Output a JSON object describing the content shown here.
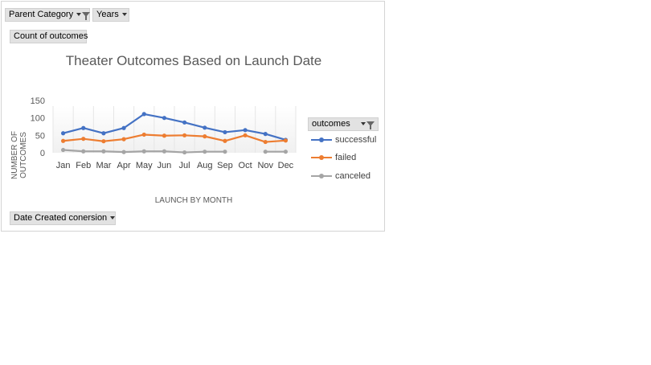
{
  "pivot_fields": {
    "parent_category": "Parent Category",
    "years": "Years",
    "values_field": "Count of outcomes",
    "axis_field": "Date Created conersion",
    "legend_field": "outcomes"
  },
  "chart_data": {
    "type": "line",
    "title": "Theater Outcomes Based on Launch Date",
    "xlabel": "LAUNCH BY MONTH",
    "ylabel": "NUMBER OF OUTCOMES",
    "ylim": [
      0,
      150
    ],
    "yticks": [
      "150",
      "100",
      "50",
      "0"
    ],
    "categories": [
      "Jan",
      "Feb",
      "Mar",
      "Apr",
      "May",
      "Jun",
      "Jul",
      "Aug",
      "Sep",
      "Oct",
      "Nov",
      "Dec"
    ],
    "series": [
      {
        "name": "successful",
        "color": "#4472c4",
        "values": [
          56,
          71,
          56,
          71,
          111,
          100,
          87,
          72,
          59,
          65,
          54,
          37
        ]
      },
      {
        "name": "failed",
        "color": "#ed7d31",
        "values": [
          34,
          40,
          33,
          39,
          52,
          49,
          50,
          47,
          34,
          50,
          31,
          35
        ]
      },
      {
        "name": "canceled",
        "color": "#a5a5a5",
        "values": [
          8,
          4,
          4,
          2,
          4,
          4,
          1,
          3,
          3,
          null,
          3,
          3
        ]
      }
    ]
  }
}
